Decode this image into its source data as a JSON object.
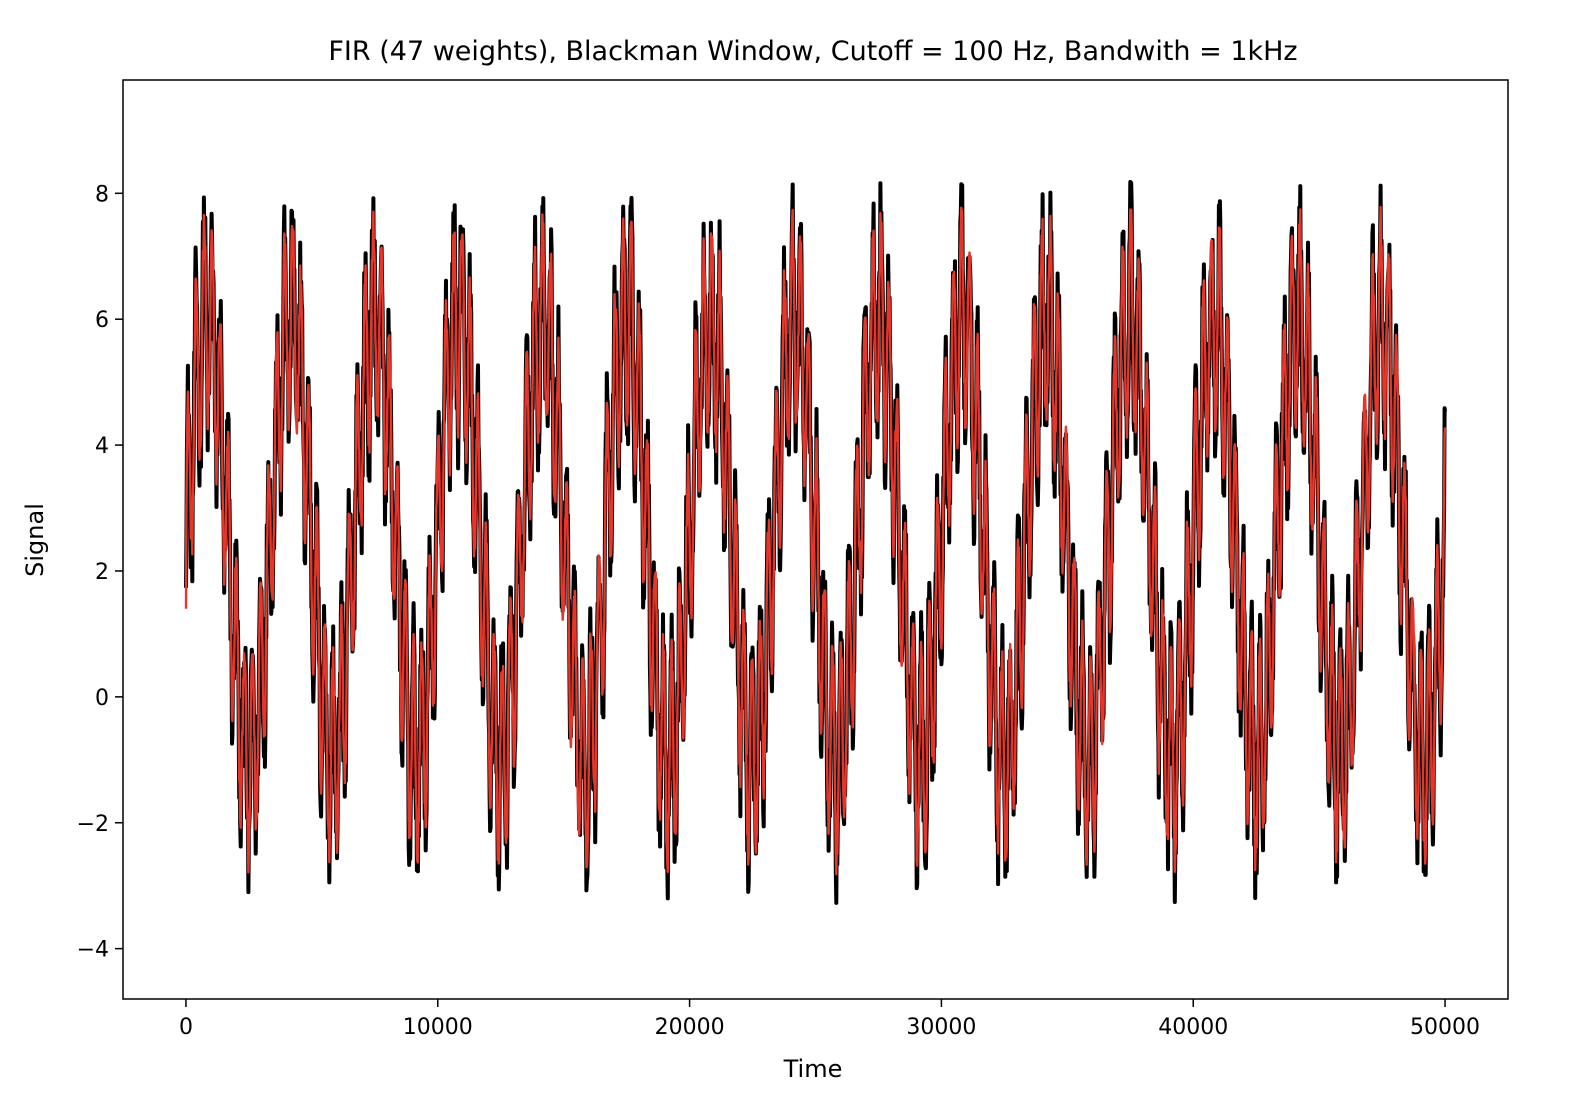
{
  "chart_data": {
    "type": "line",
    "title": "FIR (47 weights), Blackman Window, Cutoff = 100 Hz, Bandwith = 1kHz",
    "xlabel": "Time",
    "ylabel": "Signal",
    "xlim": [
      -2500,
      52500
    ],
    "ylim": [
      -4.8,
      9.8
    ],
    "xticks": [
      0,
      10000,
      20000,
      30000,
      40000,
      50000
    ],
    "xtick_labels": [
      "0",
      "10000",
      "20000",
      "30000",
      "40000",
      "50000"
    ],
    "yticks": [
      -4,
      -2,
      0,
      2,
      4,
      6,
      8
    ],
    "ytick_labels": [
      "−4",
      "−2",
      "0",
      "2",
      "4",
      "6",
      "8"
    ],
    "grid": false,
    "series": [
      {
        "color": "#000000",
        "model": {
          "offset": 2.5,
          "slow_amp": 3.5,
          "slow_period": 3333,
          "fast_amp": 1.6,
          "fast_period": 320,
          "noise_amp": 0.8,
          "x_start": 0,
          "x_end": 50000,
          "samples": 2600
        }
      },
      {
        "color": "#e8352a",
        "model": {
          "offset": 2.5,
          "slow_amp": 3.5,
          "slow_period": 3333,
          "fast_amp": 1.6,
          "fast_period": 320,
          "noise_amp": 0.3,
          "x_start": 0,
          "x_end": 50000,
          "samples": 2600,
          "start_value": 1.4
        }
      }
    ]
  }
}
